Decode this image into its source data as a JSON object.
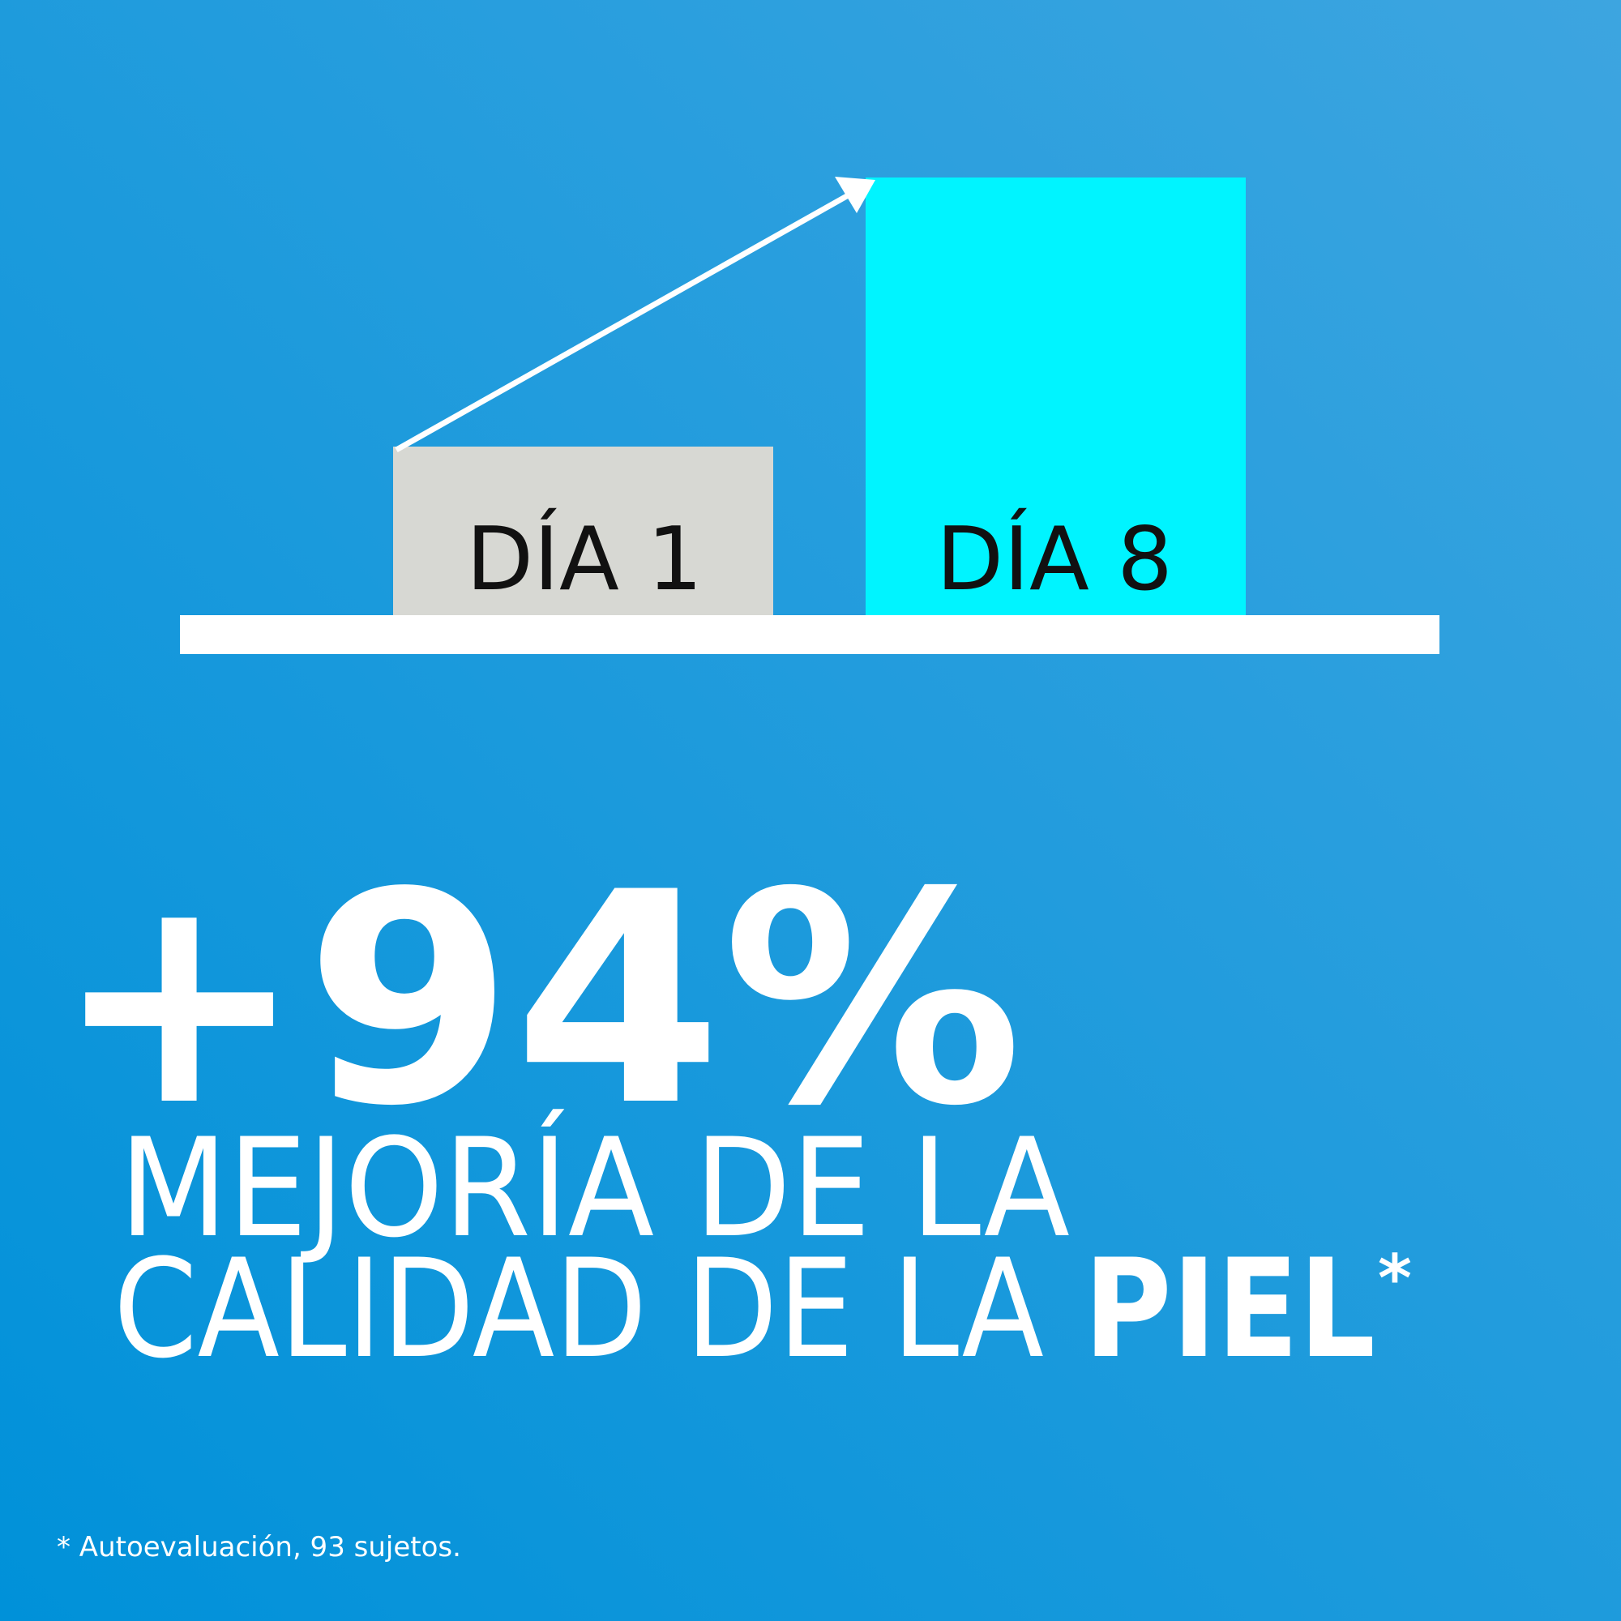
{
  "graphic": {
    "labels": [
      "DÍA 1",
      "DÍA 8"
    ]
  },
  "headline": {
    "figure": "+94%",
    "line1": "MEJORÍA DE LA",
    "line2": "CALIDAD DE LA",
    "line2_bold": "PIEL",
    "marker": "*"
  },
  "footnote": "* Autoevaluación, 93 sujetos."
}
